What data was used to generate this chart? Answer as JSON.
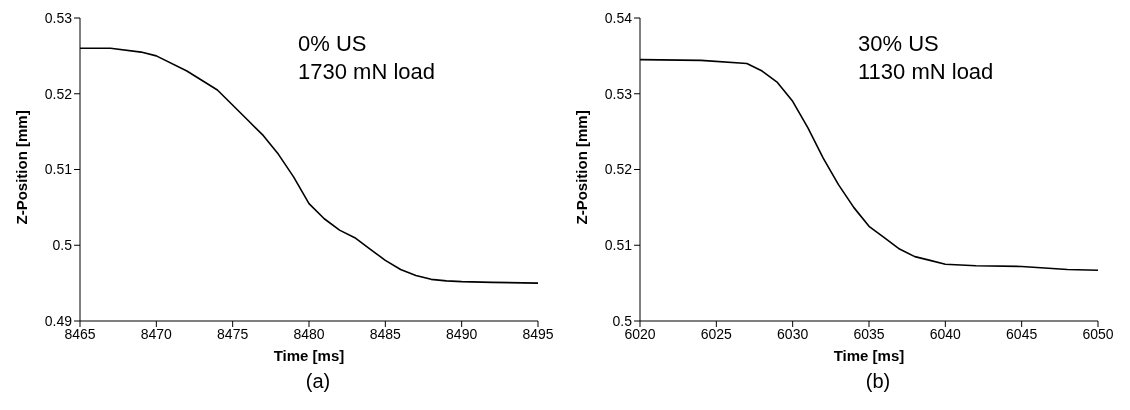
{
  "chart_data": [
    {
      "type": "line",
      "title": "(a)",
      "xlabel": "Time [ms]",
      "ylabel": "Z-Position [mm]",
      "annotations": [
        "0% US",
        "1730 mN load"
      ],
      "x": [
        8465,
        8467,
        8469,
        8470,
        8472,
        8474,
        8476,
        8477,
        8478,
        8479,
        8480,
        8481,
        8482,
        8483,
        8484,
        8485,
        8486,
        8487,
        8488,
        8489,
        8490,
        8492,
        8495
      ],
      "series": [
        {
          "color": "#000000",
          "values": [
            0.526,
            0.526,
            0.5255,
            0.525,
            0.523,
            0.5205,
            0.5165,
            0.5145,
            0.512,
            0.509,
            0.5055,
            0.5035,
            0.502,
            0.501,
            0.4995,
            0.498,
            0.4968,
            0.496,
            0.4955,
            0.4953,
            0.4952,
            0.4951,
            0.495
          ]
        }
      ],
      "xlim": [
        8465,
        8495
      ],
      "xticks": [
        8465,
        8470,
        8475,
        8480,
        8485,
        8490,
        8495
      ],
      "ylim": [
        0.49,
        0.53
      ],
      "yticks": [
        0.49,
        0.5,
        0.51,
        0.52,
        0.53
      ],
      "grid": false,
      "marker": "none",
      "line_style": "solid"
    },
    {
      "type": "line",
      "title": "(b)",
      "xlabel": "Time [ms]",
      "ylabel": "Z-Position [mm]",
      "annotations": [
        "30% US",
        "1130 mN load"
      ],
      "x": [
        6020,
        6024,
        6027,
        6028,
        6029,
        6030,
        6031,
        6032,
        6033,
        6034,
        6035,
        6036,
        6037,
        6038,
        6039,
        6040,
        6042,
        6045,
        6048,
        6050
      ],
      "series": [
        {
          "color": "#000000",
          "values": [
            0.5345,
            0.5344,
            0.534,
            0.533,
            0.5315,
            0.529,
            0.5255,
            0.5215,
            0.518,
            0.515,
            0.5125,
            0.511,
            0.5095,
            0.5085,
            0.508,
            0.5075,
            0.5073,
            0.5072,
            0.5068,
            0.5067
          ]
        }
      ],
      "xlim": [
        6020,
        6050
      ],
      "xticks": [
        6020,
        6025,
        6030,
        6035,
        6040,
        6045,
        6050
      ],
      "ylim": [
        0.5,
        0.54
      ],
      "yticks": [
        0.5,
        0.51,
        0.52,
        0.53,
        0.54
      ],
      "grid": false,
      "marker": "none",
      "line_style": "solid"
    }
  ]
}
